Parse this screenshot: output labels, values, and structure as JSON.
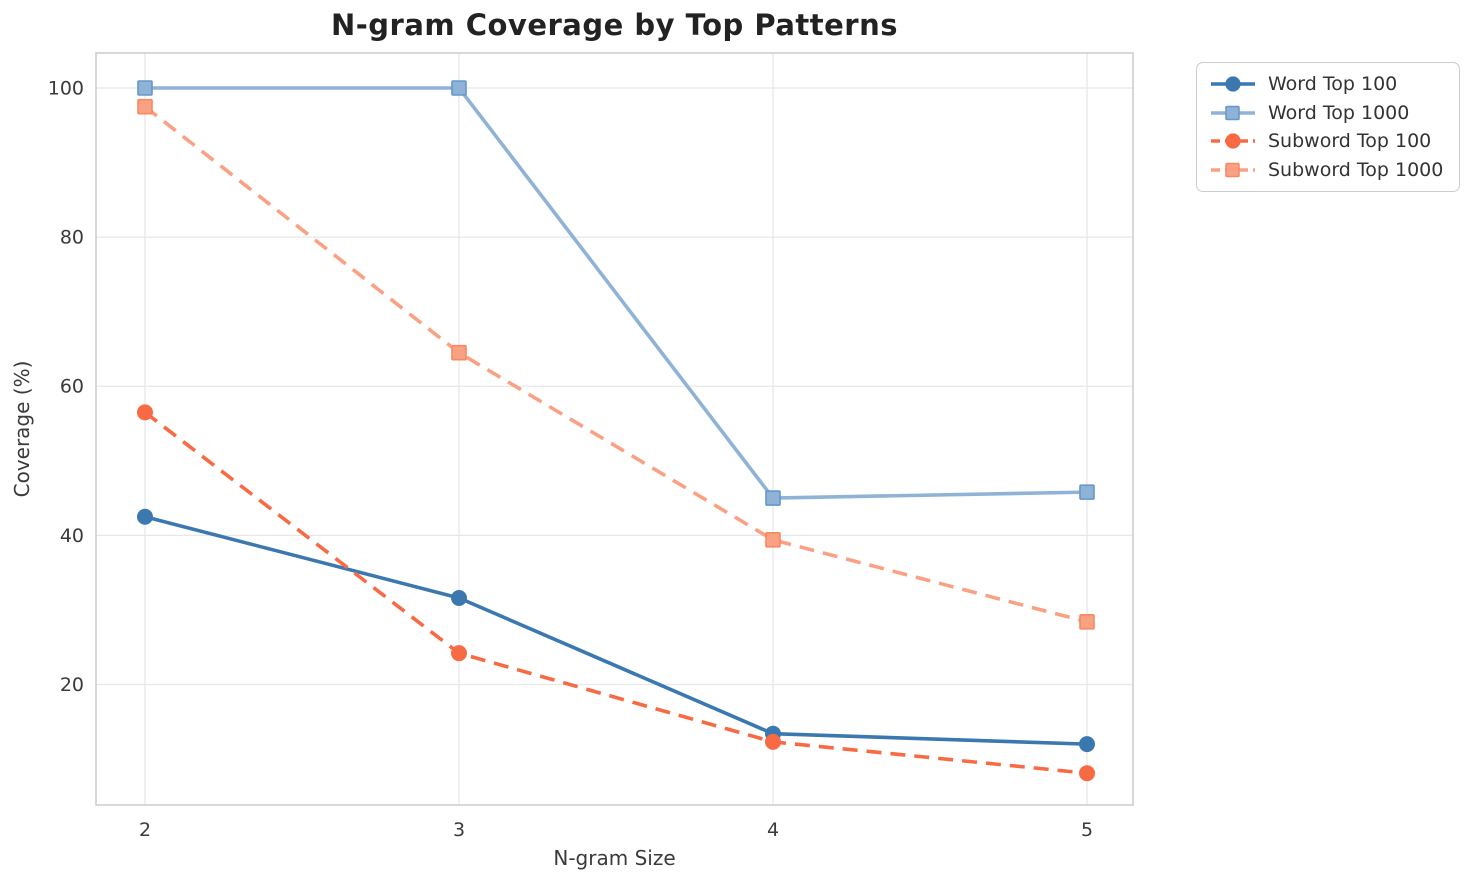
{
  "chart_data": {
    "type": "line",
    "title": "N-gram Coverage by Top Patterns",
    "xlabel": "N-gram Size",
    "ylabel": "Coverage (%)",
    "x": [
      2,
      3,
      4,
      5
    ],
    "xtick_labels": [
      "2",
      "3",
      "4",
      "5"
    ],
    "yticks": [
      20,
      40,
      60,
      80,
      100
    ],
    "ytick_labels": [
      "20",
      "40",
      "60",
      "80",
      "100"
    ],
    "xlim": [
      1.85,
      5.15
    ],
    "ylim": [
      3.5,
      104.7
    ],
    "grid": true,
    "legend_position": "outside upper right",
    "series": [
      {
        "name": "Word Top 100",
        "color": "#3B78B0",
        "marker": "circle",
        "marker_edge": "#3B78B0",
        "line_style": "solid",
        "values": [
          42.5,
          31.6,
          13.4,
          12.0
        ]
      },
      {
        "name": "Word Top 1000",
        "color": "#8FB3D6",
        "marker": "square",
        "marker_edge": "#6597CA",
        "line_style": "solid",
        "values": [
          100.0,
          100.0,
          45.0,
          45.8
        ]
      },
      {
        "name": "Subword Top 100",
        "color": "#F86A43",
        "marker": "circle",
        "marker_edge": "#F86A43",
        "line_style": "dashed",
        "values": [
          56.5,
          24.2,
          12.3,
          8.1
        ]
      },
      {
        "name": "Subword Top 1000",
        "color": "#FAA184",
        "marker": "square",
        "marker_edge": "#F8895F",
        "line_style": "dashed",
        "values": [
          97.5,
          64.5,
          39.4,
          28.4
        ]
      }
    ],
    "colors": {
      "grid": "#e8e8ea",
      "spine": "#cccccc",
      "tick_text": "#3a3a3a",
      "title_text": "#222222"
    }
  }
}
